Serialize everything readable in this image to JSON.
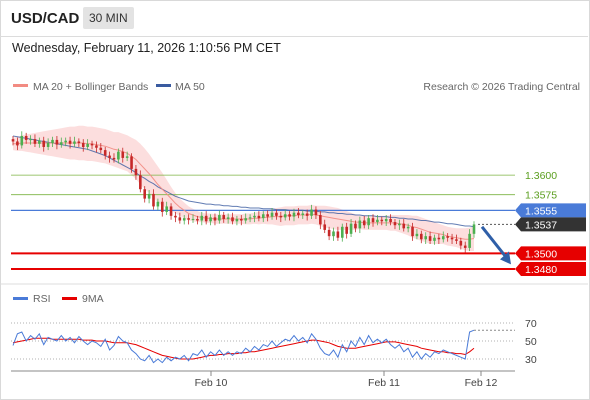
{
  "header": {
    "pair": "USD/CAD",
    "timeframe": "30 MIN"
  },
  "datetime": "Wednesday, February 11, 2026 1:10:56 PM CET",
  "colors": {
    "ma20": "#f28b82",
    "ma50": "#3a5ba0",
    "band": "#fbd3d3",
    "support": "#e60000",
    "resistance": "#7cb342",
    "pivot": "#4a7bd8",
    "current": "#333333",
    "bull": "#4caf50",
    "bear": "#c62828",
    "rsi": "#4a7bd8",
    "rsi_ma": "#e60000"
  },
  "chart_data": [
    {
      "type": "candlestick",
      "legend": [
        "MA 20 + Bollinger Bands",
        "MA 50"
      ],
      "source": "Research © 2026 Trading Central",
      "x_ticks": [
        "Feb 10",
        "Feb 11",
        "Feb 12"
      ],
      "ylim": [
        1.3466,
        1.3696
      ],
      "levels": [
        {
          "value": 1.36,
          "label": "1.3600",
          "kind": "resistance"
        },
        {
          "value": 1.3575,
          "label": "1.3575",
          "kind": "resistance"
        },
        {
          "value": 1.3555,
          "label": "1.3555",
          "kind": "pivot"
        },
        {
          "value": 1.3537,
          "label": "1.3537",
          "kind": "current"
        },
        {
          "value": 1.35,
          "label": "1.3500",
          "kind": "support"
        },
        {
          "value": 1.348,
          "label": "1.3480",
          "kind": "support"
        }
      ],
      "close": [
        1.3643,
        1.3638,
        1.365,
        1.3645,
        1.3646,
        1.364,
        1.3644,
        1.3636,
        1.3641,
        1.3645,
        1.3639,
        1.3642,
        1.3644,
        1.364,
        1.3643,
        1.3641,
        1.3636,
        1.364,
        1.3638,
        1.3635,
        1.3632,
        1.3625,
        1.3622,
        1.362,
        1.363,
        1.3622,
        1.3624,
        1.3608,
        1.36,
        1.3582,
        1.357,
        1.3576,
        1.356,
        1.3566,
        1.3553,
        1.356,
        1.3548,
        1.3546,
        1.3542,
        1.3545,
        1.3543,
        1.3544,
        1.3542,
        1.3548,
        1.3541,
        1.3546,
        1.3542,
        1.3549,
        1.3544,
        1.3546,
        1.3541,
        1.3544,
        1.3542,
        1.3545,
        1.3546,
        1.3548,
        1.3545,
        1.355,
        1.3547,
        1.3552,
        1.3548,
        1.3546,
        1.355,
        1.3547,
        1.3552,
        1.3549,
        1.3551,
        1.3548,
        1.3556,
        1.3549,
        1.3537,
        1.353,
        1.3522,
        1.3528,
        1.352,
        1.3534,
        1.3525,
        1.3538,
        1.3532,
        1.3542,
        1.3536,
        1.3545,
        1.354,
        1.3543,
        1.3541,
        1.3544,
        1.354,
        1.3536,
        1.3538,
        1.3532,
        1.3534,
        1.3522,
        1.3525,
        1.3518,
        1.3522,
        1.3516,
        1.352,
        1.3518,
        1.3522,
        1.352,
        1.3518,
        1.3516,
        1.351,
        1.3507,
        1.3525,
        1.3537
      ],
      "ma20": [
        1.364,
        1.364,
        1.3641,
        1.3641,
        1.3641,
        1.3641,
        1.3641,
        1.3641,
        1.3641,
        1.3641,
        1.3641,
        1.3641,
        1.3641,
        1.3641,
        1.3641,
        1.3641,
        1.3641,
        1.364,
        1.364,
        1.3639,
        1.3638,
        1.3637,
        1.3635,
        1.3633,
        1.3632,
        1.363,
        1.3628,
        1.3624,
        1.362,
        1.3614,
        1.3608,
        1.3602,
        1.3595,
        1.3588,
        1.3582,
        1.3576,
        1.357,
        1.3564,
        1.3559,
        1.3555,
        1.3551,
        1.3549,
        1.3547,
        1.3546,
        1.3545,
        1.3545,
        1.3544,
        1.3544,
        1.3544,
        1.3544,
        1.3544,
        1.3544,
        1.3544,
        1.3544,
        1.3544,
        1.3545,
        1.3545,
        1.3546,
        1.3546,
        1.3547,
        1.3547,
        1.3547,
        1.3548,
        1.3548,
        1.3548,
        1.3549,
        1.3549,
        1.3549,
        1.355,
        1.3549,
        1.3548,
        1.3547,
        1.3546,
        1.3545,
        1.3544,
        1.3543,
        1.3542,
        1.3541,
        1.354,
        1.354,
        1.3539,
        1.3539,
        1.3539,
        1.3539,
        1.3539,
        1.3539,
        1.3539,
        1.3539,
        1.3538,
        1.3537,
        1.3536,
        1.3534,
        1.3533,
        1.3531,
        1.3529,
        1.3527,
        1.3526,
        1.3525,
        1.3524,
        1.3522,
        1.3521,
        1.352,
        1.3519,
        1.3518,
        1.3518,
        1.3519
      ],
      "ma50": [
        1.365,
        1.3649,
        1.3648,
        1.3647,
        1.3646,
        1.3645,
        1.3644,
        1.3643,
        1.3642,
        1.3641,
        1.364,
        1.3639,
        1.3638,
        1.3637,
        1.3636,
        1.3635,
        1.3634,
        1.3633,
        1.3631,
        1.3629,
        1.3627,
        1.3625,
        1.3622,
        1.3619,
        1.3616,
        1.3613,
        1.361,
        1.3607,
        1.3603,
        1.3599,
        1.3596,
        1.3592,
        1.3589,
        1.3585,
        1.3582,
        1.3579,
        1.3576,
        1.3573,
        1.3571,
        1.3569,
        1.3567,
        1.3566,
        1.3565,
        1.3564,
        1.3563,
        1.3563,
        1.3562,
        1.3562,
        1.3561,
        1.3561,
        1.356,
        1.356,
        1.3559,
        1.3559,
        1.3558,
        1.3558,
        1.3558,
        1.3557,
        1.3557,
        1.3557,
        1.3556,
        1.3556,
        1.3556,
        1.3555,
        1.3555,
        1.3555,
        1.3555,
        1.3554,
        1.3554,
        1.3554,
        1.3553,
        1.3553,
        1.3552,
        1.3552,
        1.3551,
        1.3551,
        1.355,
        1.355,
        1.3549,
        1.3549,
        1.3548,
        1.3548,
        1.3548,
        1.3547,
        1.3547,
        1.3547,
        1.3546,
        1.3546,
        1.3545,
        1.3545,
        1.3544,
        1.3544,
        1.3543,
        1.3542,
        1.3542,
        1.3541,
        1.354,
        1.354,
        1.3539,
        1.3538,
        1.3538,
        1.3537,
        1.3536,
        1.3535,
        1.3535,
        1.3534
      ],
      "band_width": [
        0.0008,
        0.0009,
        0.001,
        0.0011,
        0.0012,
        0.0013,
        0.0014,
        0.0015,
        0.0016,
        0.0017,
        0.0018,
        0.0019,
        0.002,
        0.0021,
        0.0021,
        0.0022,
        0.0022,
        0.0022,
        0.0022,
        0.0022,
        0.0022,
        0.0022,
        0.0022,
        0.0022,
        0.0023,
        0.0023,
        0.0023,
        0.0024,
        0.0025,
        0.0026,
        0.0026,
        0.0025,
        0.0024,
        0.0023,
        0.0021,
        0.0018,
        0.0015,
        0.0013,
        0.0011,
        0.001,
        0.0009,
        0.0008,
        0.0007,
        0.0006,
        0.0006,
        0.0006,
        0.0006,
        0.0006,
        0.0006,
        0.0006,
        0.0006,
        0.0006,
        0.0006,
        0.0007,
        0.0007,
        0.0007,
        0.0008,
        0.0008,
        0.0009,
        0.001,
        0.0011,
        0.0012,
        0.0012,
        0.0012,
        0.0012,
        0.0012,
        0.0012,
        0.0012,
        0.0012,
        0.0012,
        0.0013,
        0.0014,
        0.0014,
        0.0014,
        0.0014,
        0.0013,
        0.0012,
        0.0011,
        0.001,
        0.0009,
        0.0009,
        0.0009,
        0.0009,
        0.0009,
        0.0009,
        0.0009,
        0.001,
        0.001,
        0.0011,
        0.0012,
        0.0013,
        0.0014,
        0.0015,
        0.0015,
        0.0015,
        0.0015,
        0.0014,
        0.0013,
        0.0012,
        0.0012,
        0.0012,
        0.0012,
        0.0013,
        0.0014,
        0.0015,
        0.0016
      ],
      "arrow": {
        "from": 1.3534,
        "to": 1.3486
      }
    },
    {
      "type": "line",
      "legend": [
        "RSI",
        "9MA"
      ],
      "y_ticks": [
        70,
        50,
        30
      ],
      "ylim": [
        20,
        80
      ],
      "rsi": [
        45,
        58,
        60,
        50,
        56,
        52,
        58,
        46,
        54,
        52,
        50,
        56,
        50,
        54,
        48,
        55,
        50,
        46,
        50,
        48,
        44,
        52,
        40,
        45,
        55,
        50,
        48,
        40,
        36,
        30,
        28,
        34,
        26,
        30,
        26,
        32,
        28,
        32,
        30,
        34,
        28,
        36,
        34,
        40,
        32,
        38,
        34,
        40,
        34,
        38,
        34,
        38,
        36,
        42,
        38,
        44,
        40,
        46,
        44,
        50,
        44,
        48,
        52,
        50,
        56,
        50,
        54,
        48,
        58,
        52,
        42,
        36,
        34,
        40,
        32,
        46,
        38,
        50,
        44,
        54,
        46,
        56,
        48,
        52,
        48,
        52,
        46,
        42,
        46,
        38,
        42,
        32,
        38,
        30,
        36,
        32,
        38,
        36,
        40,
        38,
        36,
        34,
        32,
        30,
        60,
        62
      ],
      "ma9": [
        48,
        49,
        50,
        51,
        52,
        53,
        53,
        53,
        53,
        52,
        52,
        52,
        52,
        52,
        52,
        52,
        51,
        51,
        51,
        50,
        50,
        50,
        49,
        48,
        48,
        48,
        48,
        47,
        46,
        44,
        42,
        40,
        38,
        36,
        34,
        33,
        32,
        31,
        30,
        30,
        30,
        30,
        31,
        32,
        33,
        34,
        34,
        35,
        35,
        36,
        36,
        36,
        37,
        37,
        38,
        38,
        39,
        40,
        41,
        42,
        43,
        44,
        45,
        46,
        47,
        48,
        49,
        50,
        51,
        51,
        50,
        49,
        48,
        46,
        44,
        43,
        42,
        42,
        42,
        43,
        44,
        45,
        46,
        47,
        48,
        49,
        49,
        49,
        48,
        47,
        46,
        45,
        44,
        42,
        41,
        40,
        39,
        38,
        38,
        37,
        37,
        36,
        36,
        35,
        38,
        42
      ]
    }
  ]
}
